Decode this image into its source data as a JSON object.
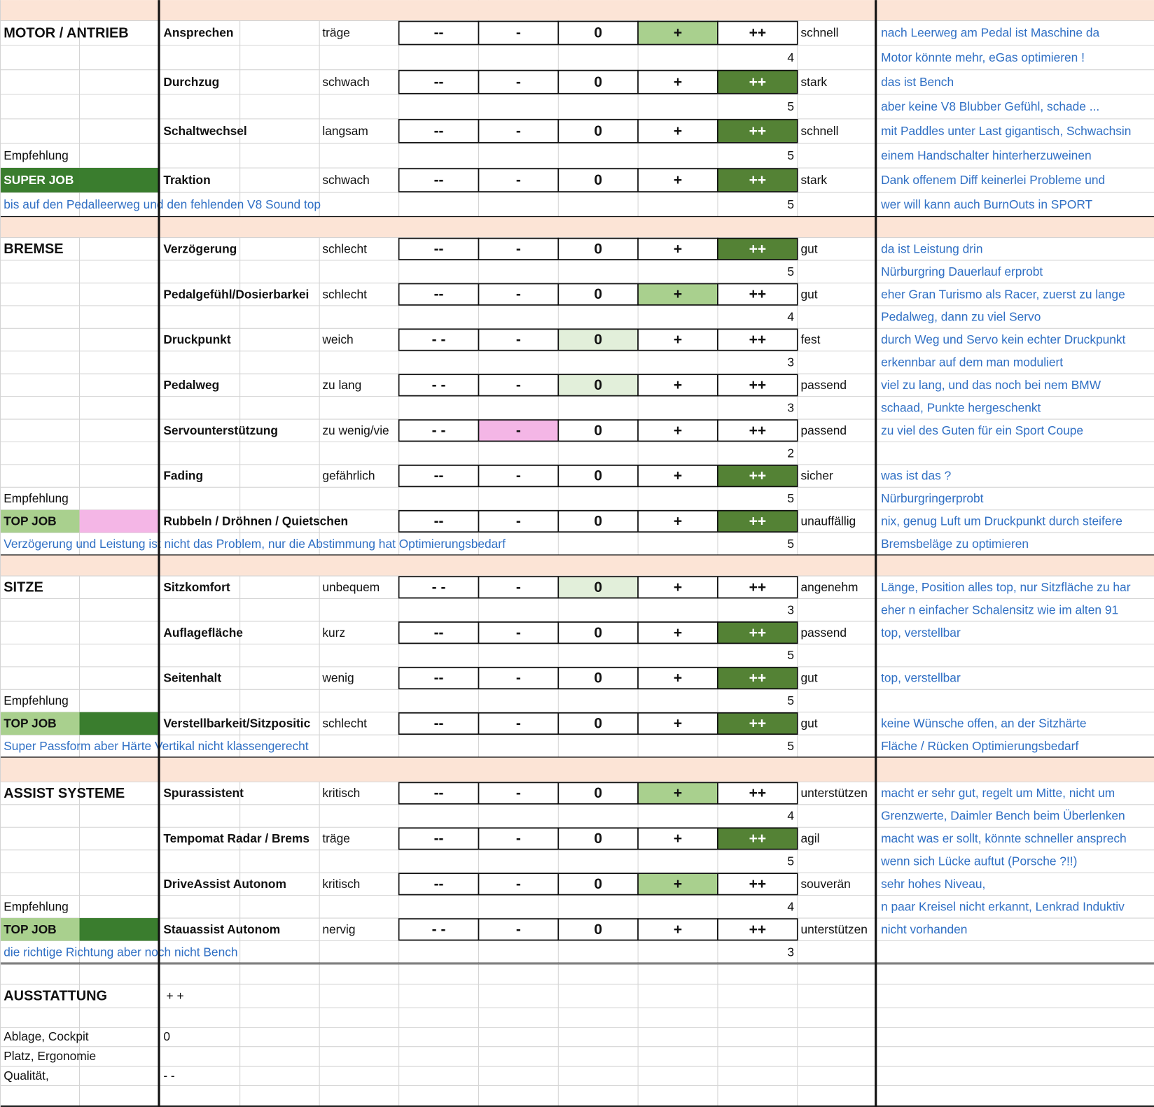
{
  "sections": [
    {
      "title": "MOTOR / ANTRIEB",
      "recommendation": "Empfehlung",
      "verdict": "SUPER JOB",
      "verdict_colors": [
        "#3a7d2e",
        "#3a7d2e"
      ],
      "verdict_text_color": "#ffffff",
      "summary": "bis auf den Pedalleerweg und den fehlenden V8 Sound top",
      "criteria": [
        {
          "name": "Ansprechen",
          "low": "träge",
          "high": "schnell",
          "scale": [
            "--",
            "-",
            "0",
            "+",
            "++"
          ],
          "highlight": {
            "box": 3,
            "color": "#a9d08e",
            "text": "#111111"
          },
          "score": 4,
          "comments": [
            "nach Leerweg am Pedal ist Maschine da",
            "Motor könnte mehr, eGas optimieren !"
          ]
        },
        {
          "name": "Durchzug",
          "low": "schwach",
          "high": "stark",
          "scale": [
            "--",
            "-",
            "0",
            "+",
            "++"
          ],
          "highlight": {
            "box": 4,
            "color": "#548235",
            "text": "#ffffff"
          },
          "score": 5,
          "comments": [
            "das ist Bench",
            "aber keine V8 Blubber Gefühl, schade ..."
          ]
        },
        {
          "name": "Schaltwechsel",
          "low": "langsam",
          "high": "schnell",
          "scale": [
            "--",
            "-",
            "0",
            "+",
            "++"
          ],
          "highlight": {
            "box": 4,
            "color": "#548235",
            "text": "#ffffff"
          },
          "score": 5,
          "comments": [
            "mit Paddles unter Last gigantisch, Schwachsin",
            "einem Handschalter hinterherzuweinen"
          ]
        },
        {
          "name": "Traktion",
          "low": "schwach",
          "high": "stark",
          "scale": [
            "--",
            "-",
            "0",
            "+",
            "++"
          ],
          "highlight": {
            "box": 4,
            "color": "#548235",
            "text": "#ffffff"
          },
          "score": 5,
          "comments": [
            "Dank offenem Diff keinerlei Probleme und",
            "wer will kann auch BurnOuts in SPORT"
          ]
        }
      ]
    },
    {
      "title": "BREMSE",
      "recommendation": "Empfehlung",
      "verdict": "TOP JOB",
      "verdict_colors": [
        "#a9d08e",
        "#f4b6e6"
      ],
      "verdict_text_color": "#111111",
      "summary": "Verzögerung und Leistung ist nicht das Problem, nur die Abstimmung hat Optimierungsbedarf",
      "criteria": [
        {
          "name": "Verzögerung",
          "low": "schlecht",
          "high": "gut",
          "scale": [
            "--",
            "-",
            "0",
            "+",
            "++"
          ],
          "highlight": {
            "box": 4,
            "color": "#548235",
            "text": "#ffffff"
          },
          "score": 5,
          "comments": [
            "da ist Leistung drin",
            "Nürburgring Dauerlauf erprobt"
          ]
        },
        {
          "name": "Pedalgefühl/Dosierbarkei",
          "low": "schlecht",
          "high": "gut",
          "scale": [
            "--",
            "-",
            "0",
            "+",
            "++"
          ],
          "highlight": {
            "box": 3,
            "color": "#a9d08e",
            "text": "#111111"
          },
          "score": 4,
          "comments": [
            "eher Gran Turismo als Racer, zuerst zu lange",
            "Pedalweg, dann zu viel Servo"
          ]
        },
        {
          "name": "Druckpunkt",
          "low": "weich",
          "high": "fest",
          "scale": [
            "- -",
            "-",
            "0",
            "+",
            "++"
          ],
          "highlight": {
            "box": 2,
            "color": "#e2efda",
            "text": "#111111"
          },
          "score": 3,
          "comments": [
            "durch Weg und Servo kein echter Druckpunkt",
            "erkennbar auf dem man moduliert"
          ]
        },
        {
          "name": "Pedalweg",
          "low": "zu lang",
          "high": "passend",
          "scale": [
            "- -",
            "-",
            "0",
            "+",
            "++"
          ],
          "highlight": {
            "box": 2,
            "color": "#e2efda",
            "text": "#111111"
          },
          "score": 3,
          "comments": [
            "viel zu lang, und das noch bei nem BMW",
            "schaad, Punkte hergeschenkt"
          ]
        },
        {
          "name": "Servounterstützung",
          "low": "zu wenig/vie",
          "high": "passend",
          "scale": [
            "- -",
            "-",
            "0",
            "+",
            "++"
          ],
          "highlight": {
            "box": 1,
            "color": "#f4b6e6",
            "text": "#111111"
          },
          "score": 2,
          "comments": [
            "zu viel des Guten für ein Sport Coupe"
          ]
        },
        {
          "name": "Fading",
          "low": "gefährlich",
          "high": "sicher",
          "scale": [
            "--",
            "-",
            "0",
            "+",
            "++"
          ],
          "highlight": {
            "box": 4,
            "color": "#548235",
            "text": "#ffffff"
          },
          "score": 5,
          "comments": [
            "was ist das  ?",
            "Nürburgringerprobt"
          ]
        },
        {
          "name": "Rubbeln / Dröhnen / Quietschen",
          "high": "unauffällig",
          "scale": [
            "--",
            "-",
            "0",
            "+",
            "++"
          ],
          "highlight": {
            "box": 4,
            "color": "#548235",
            "text": "#ffffff"
          },
          "score": 5,
          "comments": [
            "nix, genug Luft um Druckpunkt durch steifere",
            "Bremsbeläge zu optimieren"
          ]
        }
      ]
    },
    {
      "title": "SITZE",
      "recommendation": "Empfehlung",
      "verdict": "TOP JOB",
      "verdict_colors": [
        "#a9d08e",
        "#3a7d2e"
      ],
      "verdict_text_color": "#111111",
      "summary": "Super Passform aber Härte Vertikal nicht klassengerecht",
      "criteria": [
        {
          "name": "Sitzkomfort",
          "low": "unbequem",
          "high": "angenehm",
          "scale": [
            "- -",
            "-",
            "0",
            "+",
            "++"
          ],
          "highlight": {
            "box": 2,
            "color": "#e2efda",
            "text": "#111111"
          },
          "score": 3,
          "comments": [
            "Länge, Position alles top, nur Sitzfläche zu har",
            "eher n einfacher Schalensitz  wie im alten 91"
          ]
        },
        {
          "name": "Auflagefläche",
          "low": "kurz",
          "high": "passend",
          "scale": [
            "--",
            "-",
            "0",
            "+",
            "++"
          ],
          "highlight": {
            "box": 4,
            "color": "#548235",
            "text": "#ffffff"
          },
          "score": 5,
          "comments": [
            "top, verstellbar"
          ]
        },
        {
          "name": "Seitenhalt",
          "low": "wenig",
          "high": "gut",
          "scale": [
            "--",
            "-",
            "0",
            "+",
            "++"
          ],
          "highlight": {
            "box": 4,
            "color": "#548235",
            "text": "#ffffff"
          },
          "score": 5,
          "comments": [
            "top, verstellbar"
          ]
        },
        {
          "name": "Verstellbarkeit/Sitzpositic",
          "low": "schlecht",
          "high": "gut",
          "scale": [
            "--",
            "-",
            "0",
            "+",
            "++"
          ],
          "highlight": {
            "box": 4,
            "color": "#548235",
            "text": "#ffffff"
          },
          "score": 5,
          "comments": [
            "keine Wünsche offen, an der Sitzhärte",
            "Fläche / Rücken Optimierungsbedarf"
          ]
        }
      ]
    },
    {
      "title": "ASSIST SYSTEME",
      "recommendation": "Empfehlung",
      "verdict": "TOP JOB",
      "verdict_colors": [
        "#a9d08e",
        "#3a7d2e"
      ],
      "verdict_text_color": "#111111",
      "summary": "die richtige Richtung aber noch nicht Bench",
      "criteria": [
        {
          "name": "Spurassistent",
          "low": "kritisch",
          "high": "unterstützen",
          "scale": [
            "--",
            "-",
            "0",
            "+",
            "++"
          ],
          "highlight": {
            "box": 3,
            "color": "#a9d08e",
            "text": "#111111"
          },
          "score": 4,
          "comments": [
            "macht er sehr gut, regelt um Mitte, nicht um",
            "Grenzwerte, Daimler Bench beim Überlenken"
          ]
        },
        {
          "name": "Tempomat Radar / Brems",
          "low": "träge",
          "high": "agil",
          "scale": [
            "--",
            "-",
            "0",
            "+",
            "++"
          ],
          "highlight": {
            "box": 4,
            "color": "#548235",
            "text": "#ffffff"
          },
          "score": 5,
          "comments": [
            "macht was er sollt, könnte schneller ansprech",
            "wenn sich Lücke auftut (Porsche ?!!)"
          ]
        },
        {
          "name": "DriveAssist Autonom",
          "low": "kritisch",
          "high": "souverän",
          "scale": [
            "--",
            "-",
            "0",
            "+",
            "++"
          ],
          "highlight": {
            "box": 3,
            "color": "#a9d08e",
            "text": "#111111"
          },
          "score": 4,
          "comments": [
            "sehr hohes Niveau,",
            "n paar Kreisel nicht erkannt, Lenkrad Induktiv"
          ]
        },
        {
          "name": "Stauassist Autonom",
          "low": "nervig",
          "high": "unterstützen",
          "scale": [
            "- -",
            "-",
            "0",
            "+",
            "++"
          ],
          "score": 3,
          "comments": [
            "nicht vorhanden"
          ]
        }
      ]
    }
  ],
  "equipment": {
    "title": "AUSSTATTUNG",
    "title_rating": "+ +",
    "items": [
      {
        "label": "Ablage, Cockpit",
        "rating": "0"
      },
      {
        "label": "Platz, Ergonomie"
      },
      {
        "label": "Qualität,",
        "rating": "- -"
      }
    ]
  },
  "header_color": "#fce4d6"
}
